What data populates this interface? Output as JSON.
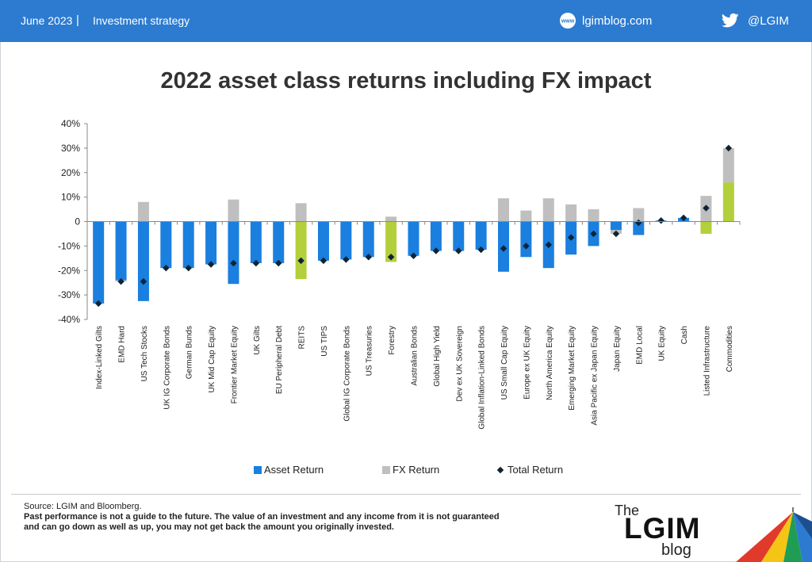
{
  "header": {
    "date": "June 2023",
    "separator": "|",
    "topic": "Investment strategy",
    "website": "lgimblog.com",
    "web_icon_text": "www",
    "handle": "@LGIM"
  },
  "colors": {
    "header_bg": "#2c7bd0",
    "asset_return": "#1a7fdf",
    "asset_return_highlight": "#b4cf3c",
    "fx_return": "#bfbfbf",
    "total_return": "#0d2436"
  },
  "icons": {
    "web": "globe-www-icon",
    "social": "twitter-bird-icon",
    "logo": "umbrella-logo"
  },
  "chart_data": {
    "type": "bar",
    "title": "2022 asset class returns including FX impact",
    "xlabel": "",
    "ylabel": "",
    "ylim": [
      -40,
      40
    ],
    "ytick_step": 10,
    "ytick_labels": [
      "40%",
      "30%",
      "20%",
      "10%",
      "0",
      "-10%",
      "-20%",
      "-30%",
      "-40%"
    ],
    "grid": false,
    "legend_position": "bottom",
    "categories": [
      "Index-Linked Gilts",
      "EMD Hard",
      "US Tech Stocks",
      "UK IG Corporate Bonds",
      "German Bunds",
      "UK Mid Cap Equity",
      "Frontier Market Equity",
      "UK Gilts",
      "EU Peripheral Debt",
      "REITS",
      "US TIPS",
      "Global IG Corporate Bonds",
      "US Treasuries",
      "Forestry",
      "Australian Bonds",
      "Global High Yield",
      "Dev ex UK Sovereign",
      "Global Inflation-Linked Bonds",
      "US Small Cap Equity",
      "Europe ex UK Equity",
      "North America Equity",
      "Emerging Market Equity",
      "Asia Pacific ex Japan Equity",
      "Japan Equity",
      "EMD Local",
      "UK Equity",
      "Cash",
      "Listed Infrastructure",
      "Commodities"
    ],
    "highlighted_categories": [
      "REITS",
      "Forestry",
      "Listed Infrastructure",
      "Commodities"
    ],
    "series": [
      {
        "name": "Asset Return",
        "kind": "stacked-bar",
        "values": [
          -33.5,
          -24,
          -32.5,
          -19,
          -19,
          -17.5,
          -25.5,
          -17,
          -17,
          -23.5,
          -16,
          -15.5,
          -14.5,
          -16.5,
          -14,
          -12,
          -12,
          -11.5,
          -20.5,
          -14.5,
          -19,
          -13.5,
          -10,
          -3.5,
          -5.5,
          0.4,
          1.5,
          -5,
          16
        ]
      },
      {
        "name": "FX Return",
        "kind": "stacked-bar",
        "values": [
          0,
          -0.5,
          8,
          0,
          0,
          0,
          9,
          0,
          0,
          7.5,
          0,
          0,
          0,
          2,
          0,
          0,
          0,
          0,
          9.5,
          4.5,
          9.5,
          7,
          5,
          -1.5,
          5.5,
          0,
          0,
          10.5,
          14
        ]
      },
      {
        "name": "Total Return",
        "kind": "marker",
        "values": [
          -33.5,
          -24.5,
          -24.5,
          -19,
          -19,
          -17.5,
          -17,
          -17,
          -17,
          -16,
          -16,
          -15.5,
          -14.5,
          -14.5,
          -14,
          -12,
          -12,
          -11.5,
          -11,
          -10,
          -9.5,
          -6.5,
          -5,
          -5,
          -0.5,
          0.4,
          1.5,
          5.5,
          30
        ]
      }
    ]
  },
  "legend": {
    "asset": "Asset Return",
    "fx": "FX Return",
    "total": "Total Return"
  },
  "footer": {
    "source": "Source: LGIM and Bloomberg.",
    "disclaimer": "Past performance is not a guide to the future. The value of an investment and any income from it is not guaranteed and can go down as well as up, you may not get back the amount you originally invested.",
    "logo_the": "The",
    "logo_main": "LGIM",
    "logo_blog": "blog"
  }
}
